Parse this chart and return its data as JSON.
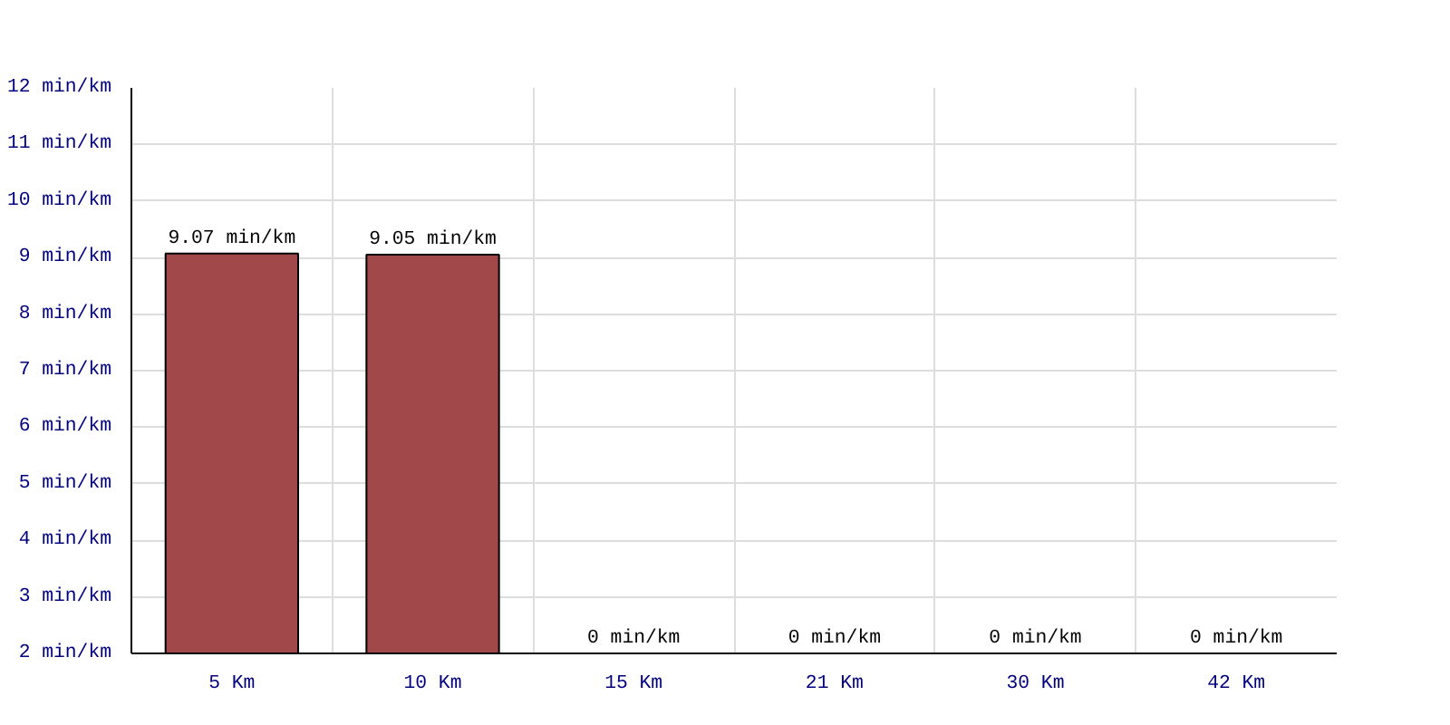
{
  "chart_data": {
    "type": "bar",
    "categories": [
      "5 Km",
      "10 Km",
      "15 Km",
      "21 Km",
      "30 Km",
      "42 Km"
    ],
    "values": [
      9.07,
      9.05,
      null,
      null,
      null,
      null
    ],
    "value_labels": [
      "9.07 min/km",
      "9.05 min/km",
      "0 min/km",
      "0 min/km",
      "0 min/km",
      "0 min/km"
    ],
    "color": "#a0484a",
    "ylim": [
      2,
      12
    ],
    "yticks": [
      {
        "value": 2,
        "label": "2 min/km"
      },
      {
        "value": 3,
        "label": "3 min/km"
      },
      {
        "value": 4,
        "label": "4 min/km"
      },
      {
        "value": 5,
        "label": "5 min/km"
      },
      {
        "value": 6,
        "label": "6 min/km"
      },
      {
        "value": 7,
        "label": "7 min/km"
      },
      {
        "value": 8,
        "label": "8 min/km"
      },
      {
        "value": 9,
        "label": "9 min/km"
      },
      {
        "value": 10,
        "label": "10 min/km"
      },
      {
        "value": 11,
        "label": "11 min/km"
      },
      {
        "value": 12,
        "label": "12 min/km"
      }
    ],
    "grid": true
  }
}
